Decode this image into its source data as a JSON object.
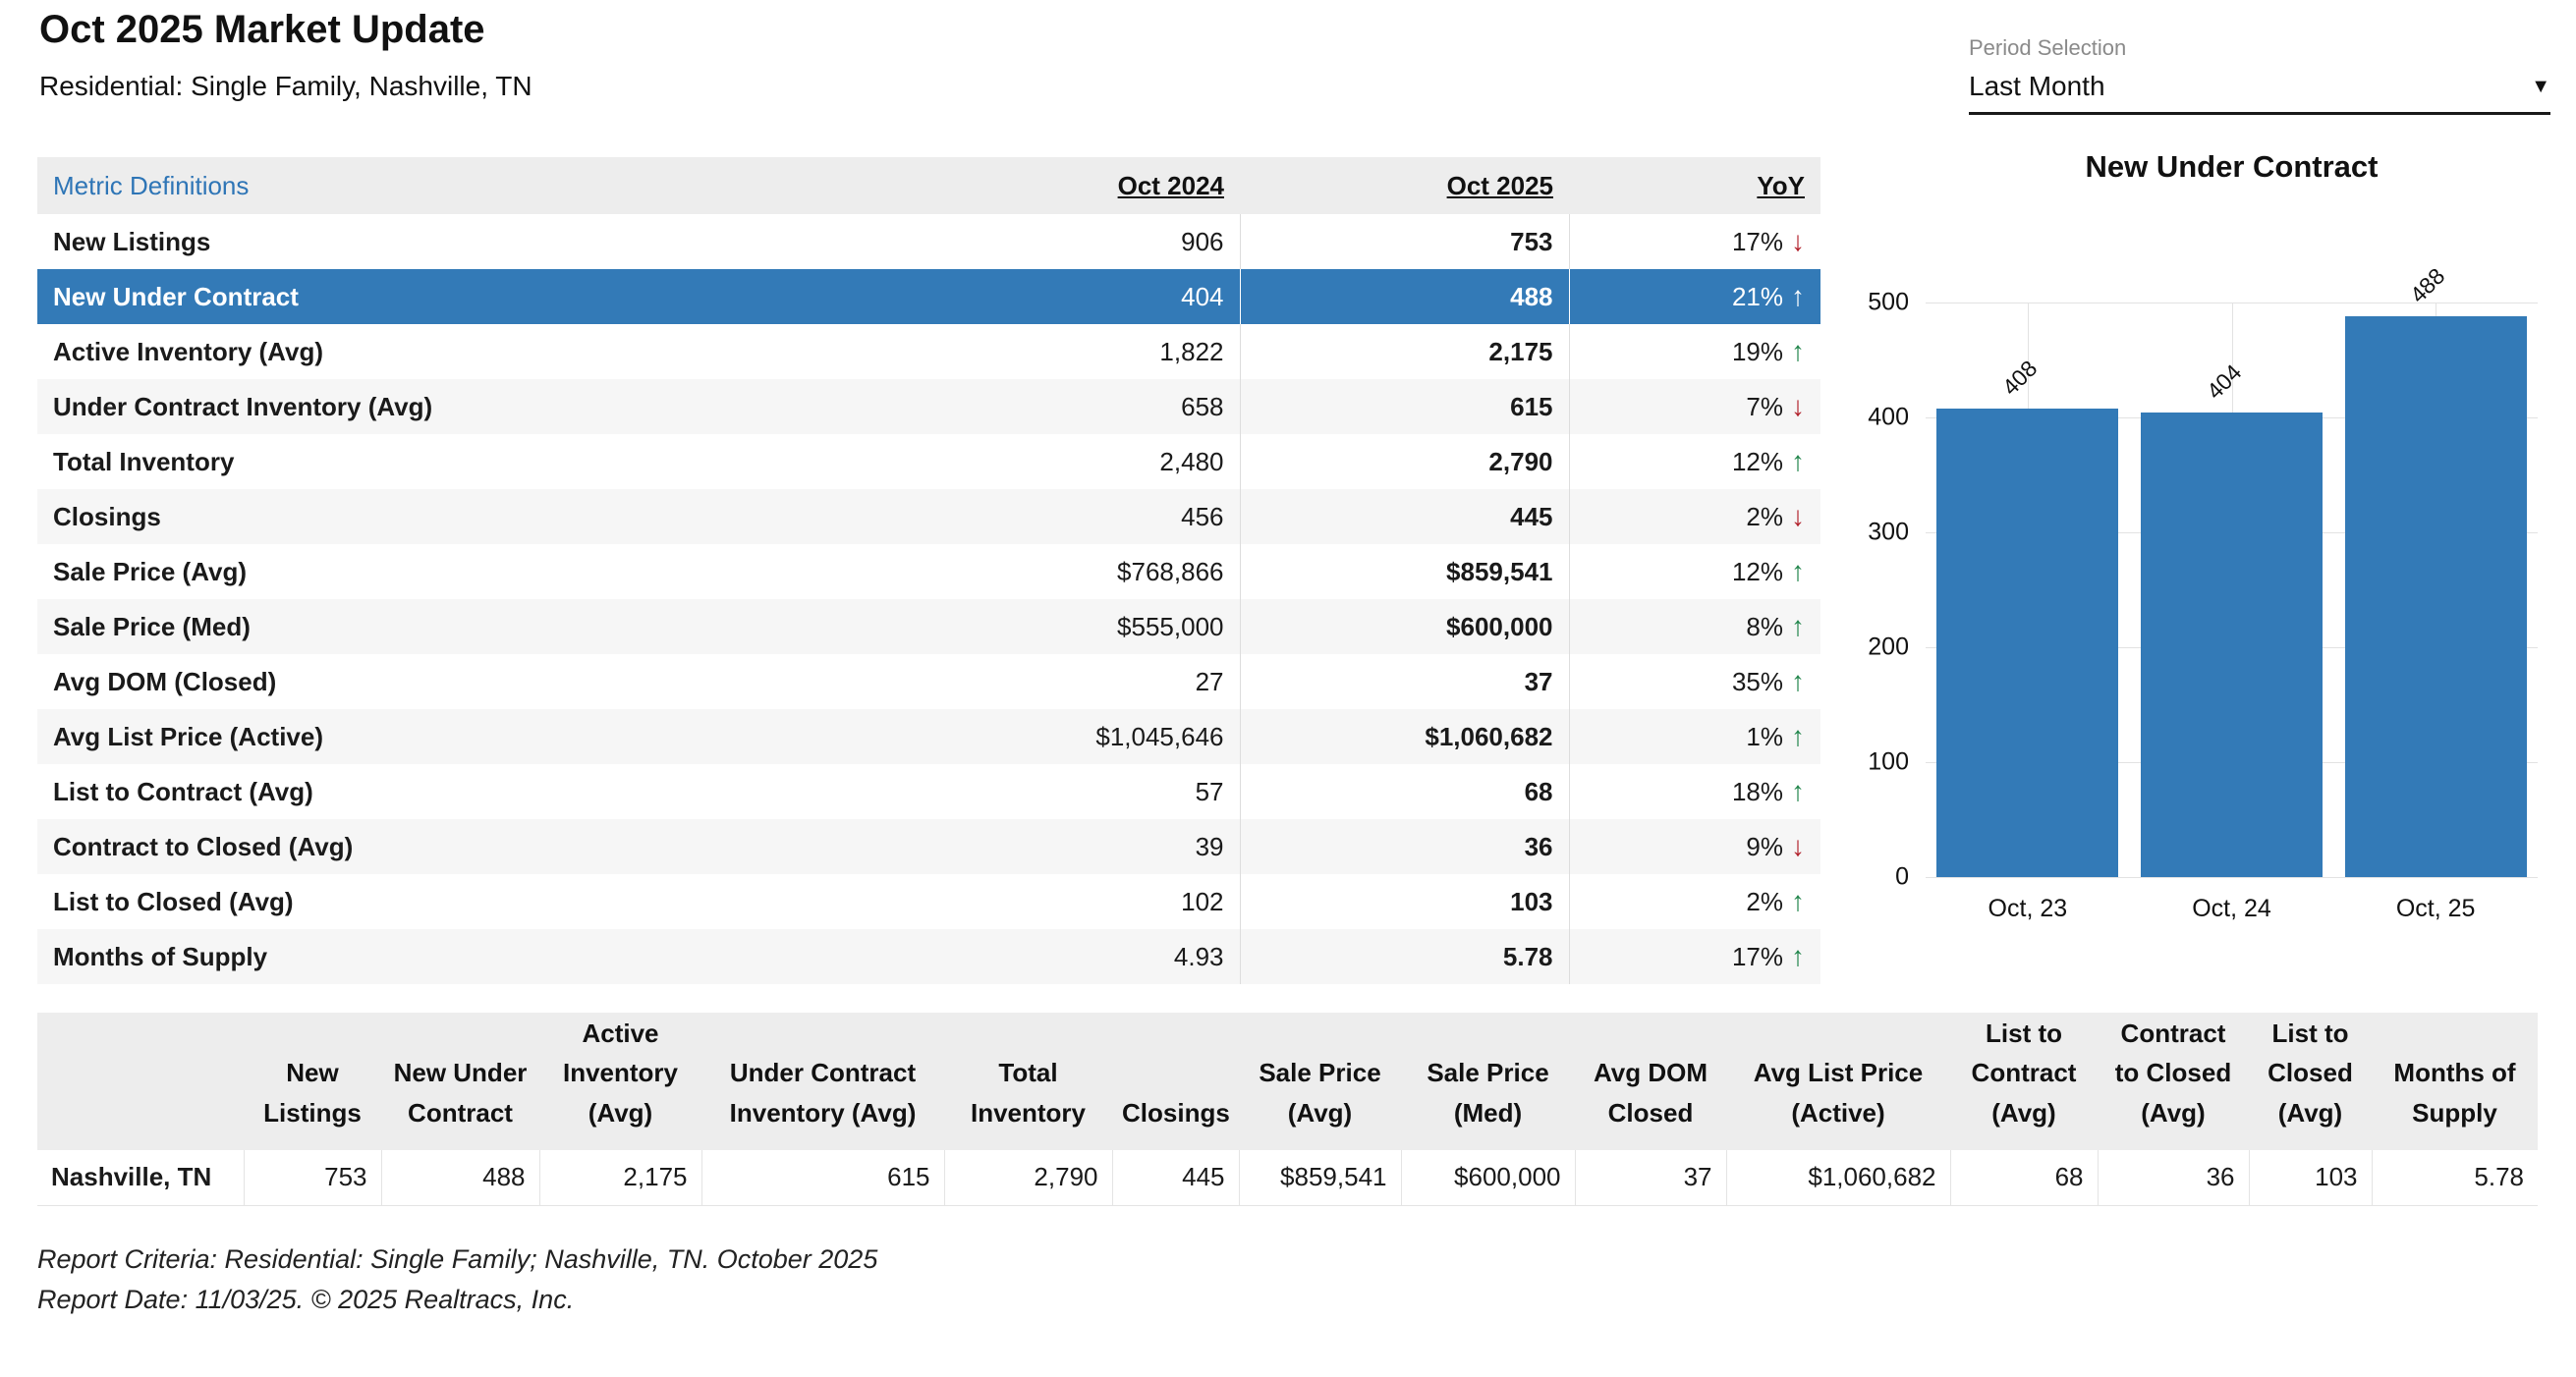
{
  "header": {
    "title": "Oct 2025 Market Update",
    "subtitle": "Residential: Single Family, Nashville, TN"
  },
  "period_selector": {
    "label": "Period Selection",
    "value": "Last Month"
  },
  "icons": {
    "up": "↑",
    "down": "↓",
    "caret": "▼"
  },
  "metrics_table": {
    "definitions_link": "Metric Definitions",
    "columns": [
      "Oct 2024",
      "Oct 2025",
      "YoY"
    ],
    "rows": [
      {
        "metric": "New Listings",
        "oct2024": "906",
        "oct2025": "753",
        "yoy": "17%",
        "direction": "down",
        "selected": false
      },
      {
        "metric": "New Under Contract",
        "oct2024": "404",
        "oct2025": "488",
        "yoy": "21%",
        "direction": "up",
        "selected": true
      },
      {
        "metric": "Active Inventory (Avg)",
        "oct2024": "1,822",
        "oct2025": "2,175",
        "yoy": "19%",
        "direction": "up",
        "selected": false
      },
      {
        "metric": "Under Contract Inventory (Avg)",
        "oct2024": "658",
        "oct2025": "615",
        "yoy": "7%",
        "direction": "down",
        "selected": false
      },
      {
        "metric": "Total Inventory",
        "oct2024": "2,480",
        "oct2025": "2,790",
        "yoy": "12%",
        "direction": "up",
        "selected": false
      },
      {
        "metric": "Closings",
        "oct2024": "456",
        "oct2025": "445",
        "yoy": "2%",
        "direction": "down",
        "selected": false
      },
      {
        "metric": "Sale Price (Avg)",
        "oct2024": "$768,866",
        "oct2025": "$859,541",
        "yoy": "12%",
        "direction": "up",
        "selected": false
      },
      {
        "metric": "Sale Price (Med)",
        "oct2024": "$555,000",
        "oct2025": "$600,000",
        "yoy": "8%",
        "direction": "up",
        "selected": false
      },
      {
        "metric": "Avg DOM (Closed)",
        "oct2024": "27",
        "oct2025": "37",
        "yoy": "35%",
        "direction": "up",
        "selected": false
      },
      {
        "metric": "Avg List Price (Active)",
        "oct2024": "$1,045,646",
        "oct2025": "$1,060,682",
        "yoy": "1%",
        "direction": "up",
        "selected": false
      },
      {
        "metric": "List to Contract (Avg)",
        "oct2024": "57",
        "oct2025": "68",
        "yoy": "18%",
        "direction": "up",
        "selected": false
      },
      {
        "metric": "Contract to Closed (Avg)",
        "oct2024": "39",
        "oct2025": "36",
        "yoy": "9%",
        "direction": "down",
        "selected": false
      },
      {
        "metric": "List to Closed (Avg)",
        "oct2024": "102",
        "oct2025": "103",
        "yoy": "2%",
        "direction": "up",
        "selected": false
      },
      {
        "metric": "Months of Supply",
        "oct2024": "4.93",
        "oct2025": "5.78",
        "yoy": "17%",
        "direction": "up",
        "selected": false
      }
    ]
  },
  "chart_data": {
    "type": "bar",
    "title": "New Under Contract",
    "categories": [
      "Oct, 23",
      "Oct, 24",
      "Oct, 25"
    ],
    "values": [
      408,
      404,
      488
    ],
    "bar_labels": [
      "408",
      "404",
      "488"
    ],
    "ylim": [
      0,
      500
    ],
    "yticks": [
      0,
      100,
      200,
      300,
      400,
      500
    ],
    "grid": true,
    "legend": "none",
    "bar_color": "#337ab7"
  },
  "summary_table": {
    "columns": [
      "",
      "New Listings",
      "New Under Contract",
      "Active Inventory (Avg)",
      "Under Contract Inventory (Avg)",
      "Total Inventory",
      "Closings",
      "Sale Price (Avg)",
      "Sale Price (Med)",
      "Avg DOM Closed",
      "Avg List Price (Active)",
      "List to Contract (Avg)",
      "Contract to Closed (Avg)",
      "List to Closed (Avg)",
      "Months of Supply"
    ],
    "rows": [
      {
        "region": "Nashville, TN",
        "values": [
          "753",
          "488",
          "2,175",
          "615",
          "2,790",
          "445",
          "$859,541",
          "$600,000",
          "37",
          "$1,060,682",
          "68",
          "36",
          "103",
          "5.78"
        ]
      }
    ]
  },
  "footer": {
    "line1": "Report Criteria: Residential: Single Family; Nashville, TN. October 2025",
    "line2": "Report Date: 11/03/25. © 2025 Realtracs, Inc."
  },
  "colors": {
    "accent_blue": "#337ab7",
    "up_green": "#1e8449",
    "down_red": "#b2222c",
    "header_gray": "#ededed",
    "link_blue": "#2e75b6"
  }
}
